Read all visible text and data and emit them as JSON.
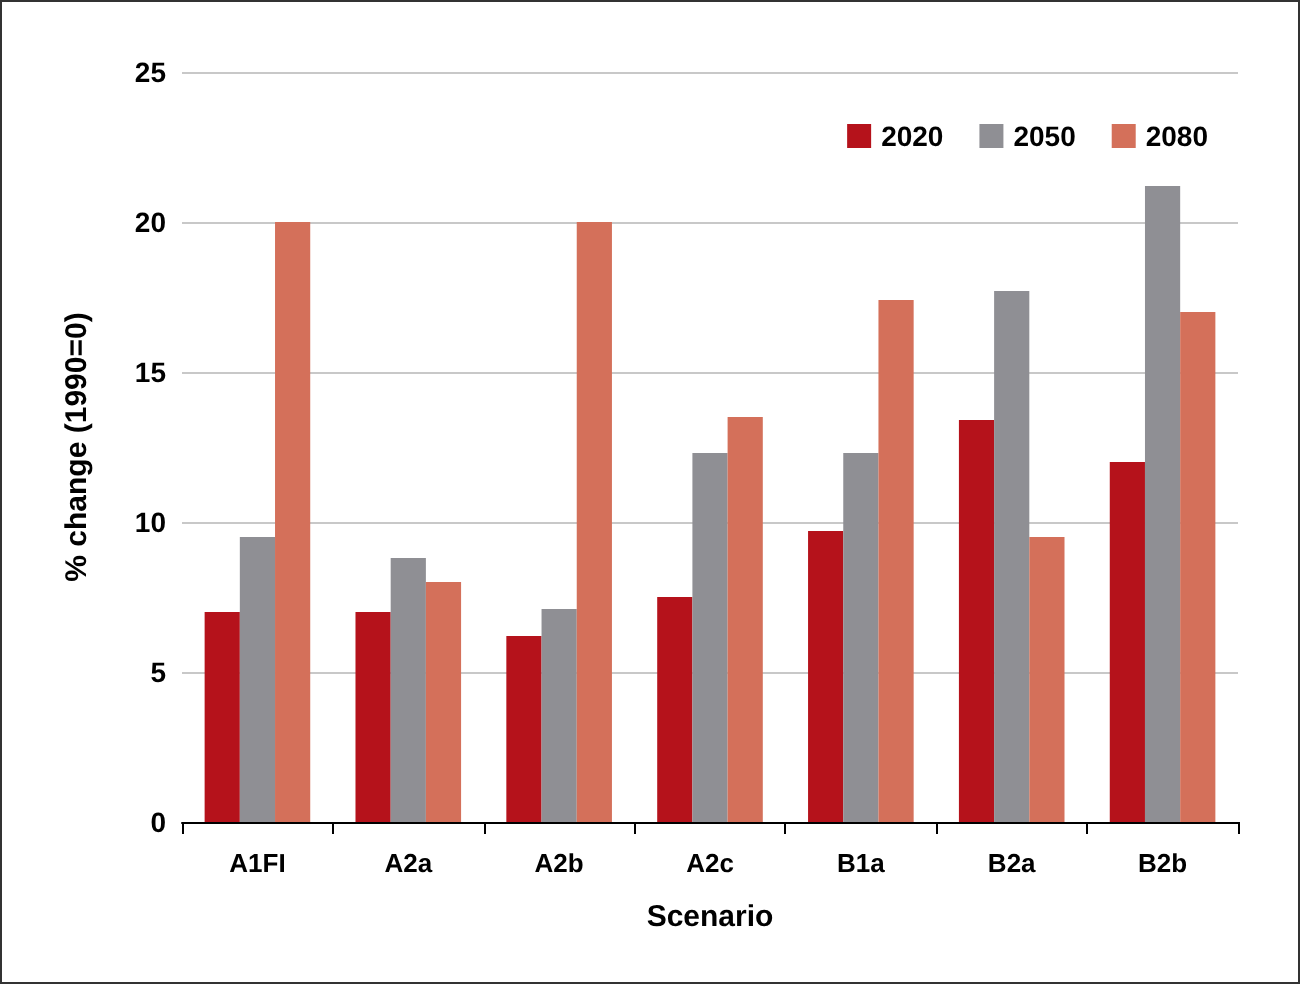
{
  "chart_data": {
    "type": "bar",
    "xlabel": "Scenario",
    "ylabel": "% change (1990=0)",
    "categories": [
      "A1FI",
      "A2a",
      "A2b",
      "A2c",
      "B1a",
      "B2a",
      "B2b"
    ],
    "series": [
      {
        "name": "2020",
        "color": "#b5121b",
        "values": [
          7.0,
          7.0,
          6.2,
          7.5,
          9.7,
          13.4,
          12.0
        ]
      },
      {
        "name": "2050",
        "color": "#8f8f94",
        "values": [
          9.5,
          8.8,
          7.1,
          12.3,
          12.3,
          17.7,
          21.2
        ]
      },
      {
        "name": "2080",
        "color": "#d4705a",
        "values": [
          20.0,
          8.0,
          20.0,
          13.5,
          17.4,
          9.5,
          17.0
        ]
      }
    ],
    "ylim": [
      0,
      25
    ],
    "yticks": [
      0,
      5,
      10,
      15,
      20,
      25
    ],
    "grid": "y",
    "legend": "top right"
  }
}
